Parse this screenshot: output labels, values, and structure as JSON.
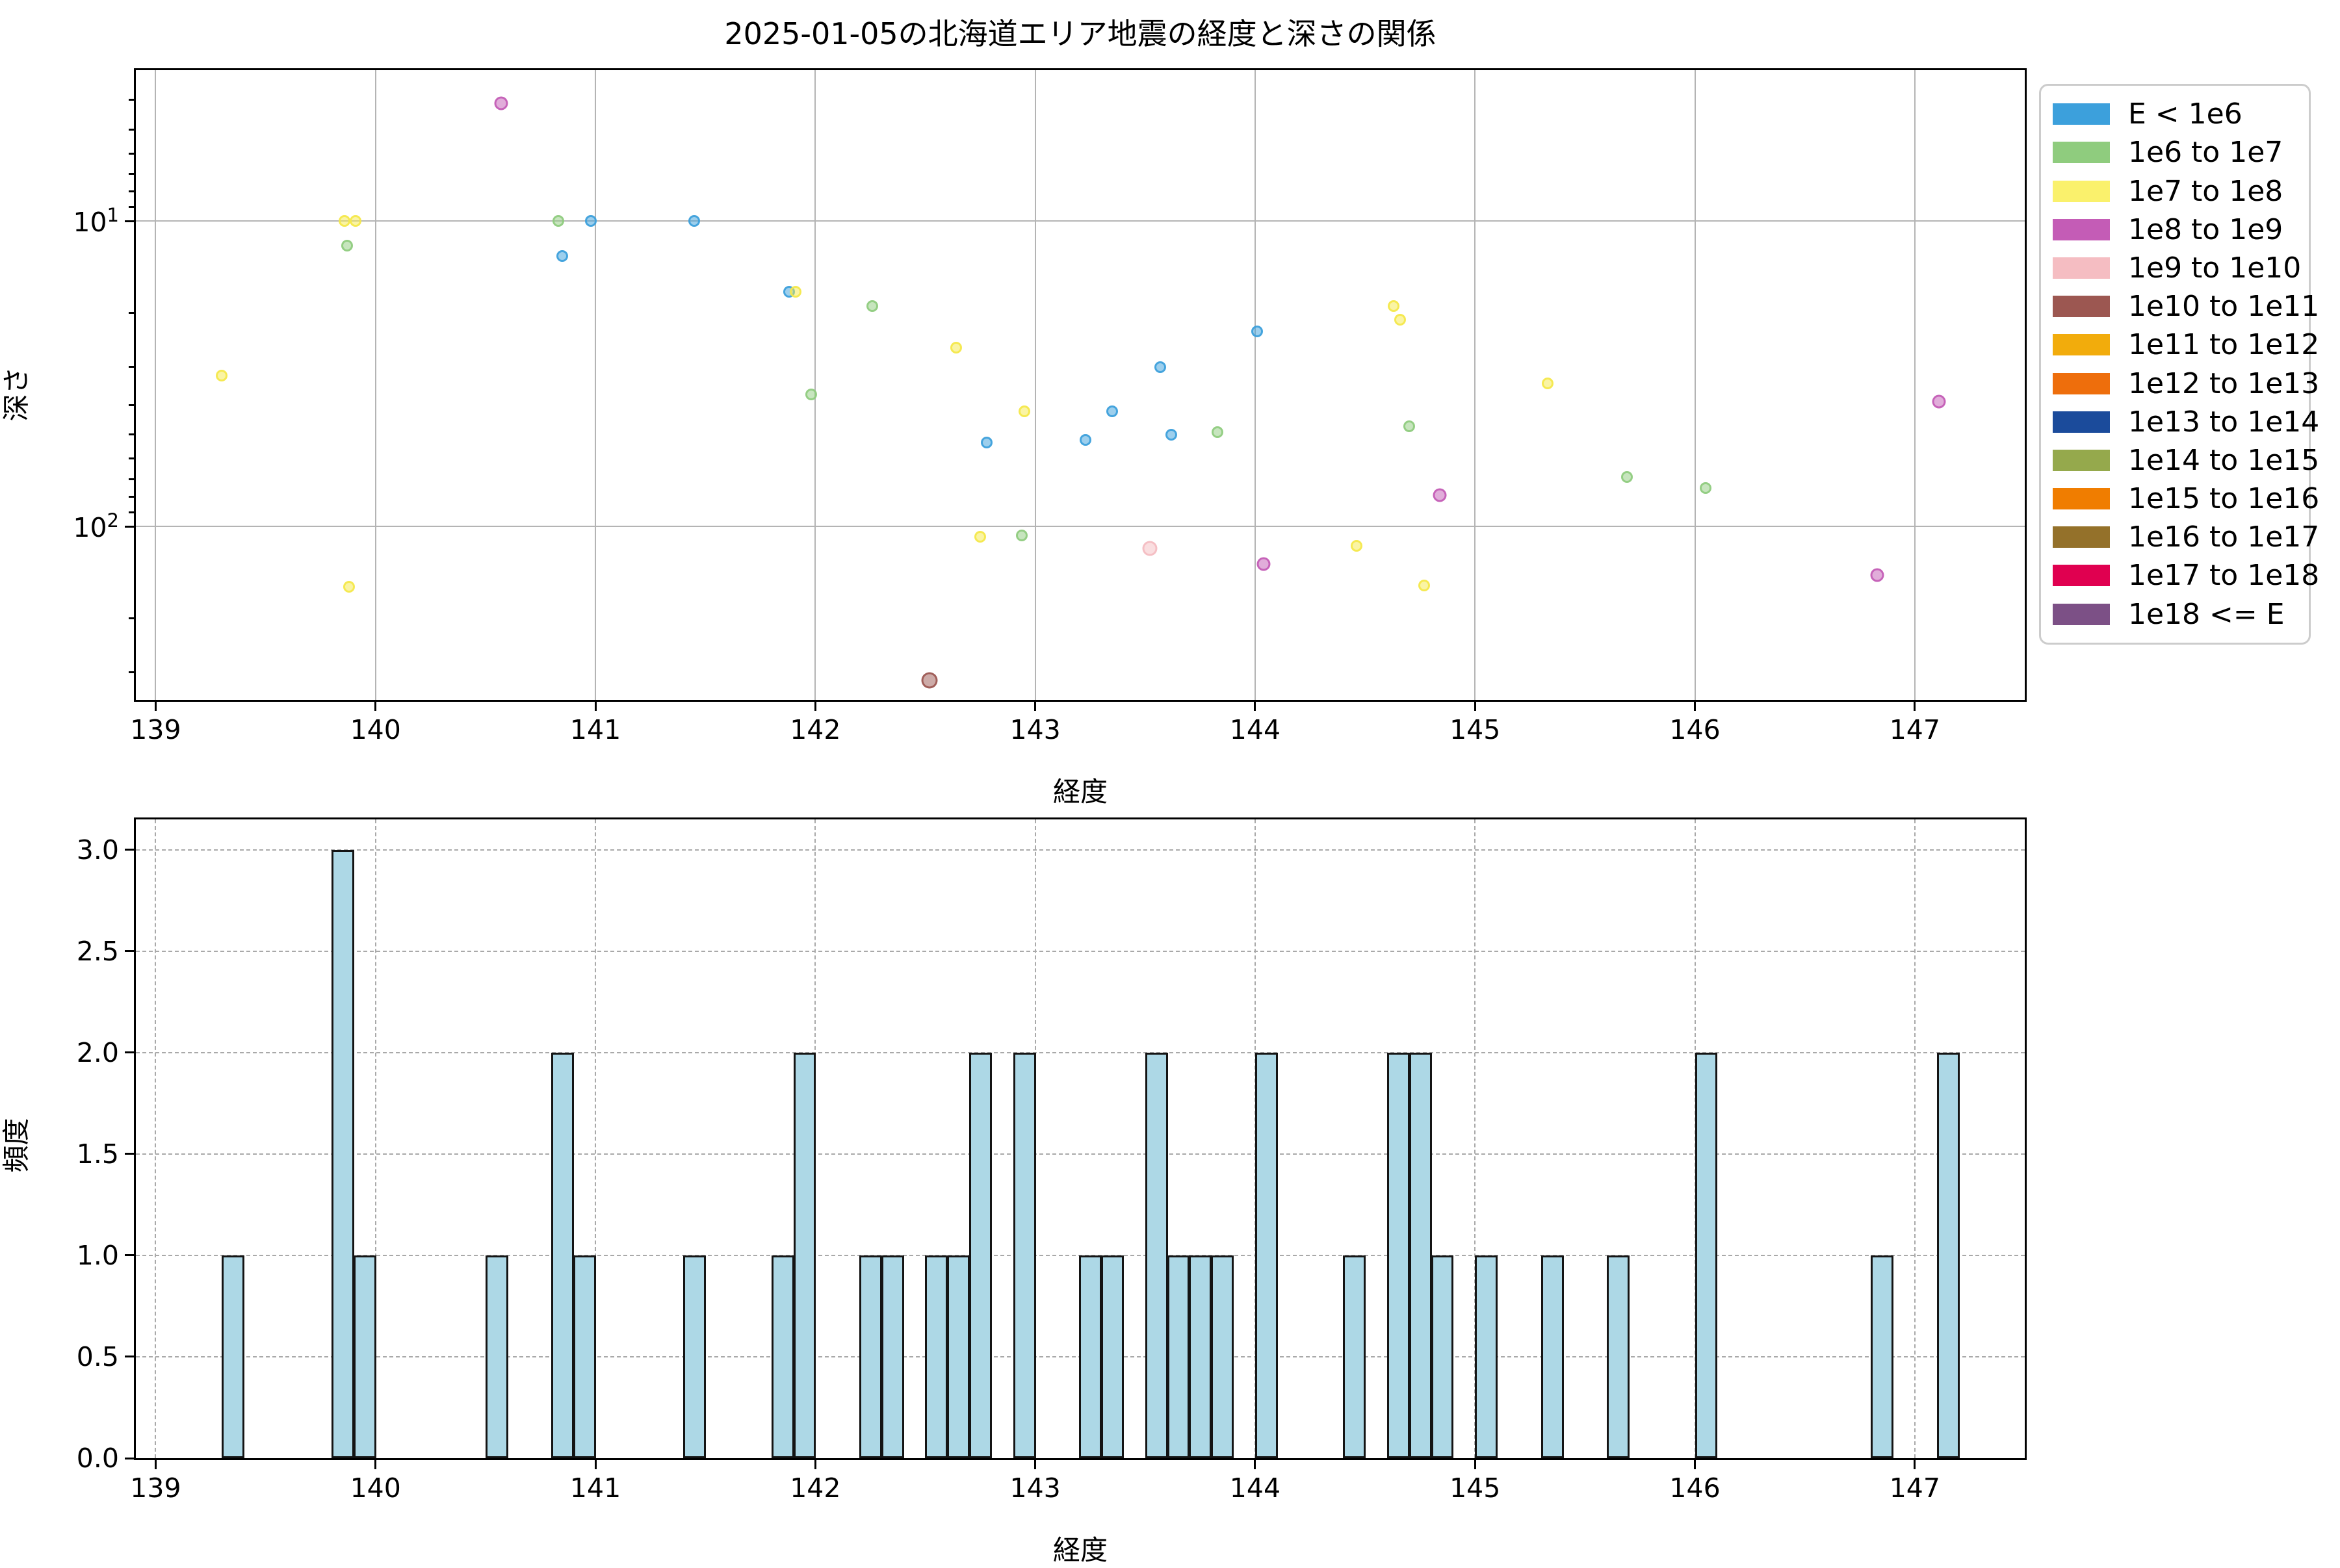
{
  "title": "2025-01-05の北海道エリア地震の経度と深さの関係",
  "scatter": {
    "xlabel": "経度",
    "ylabel": "深さ",
    "ytick_base": "10",
    "ytick_exponents": [
      1,
      2
    ]
  },
  "histogram": {
    "xlabel": "経度",
    "ylabel": "頻度",
    "ytick_labels": [
      "0.0",
      "0.5",
      "1.0",
      "1.5",
      "2.0",
      "2.5",
      "3.0"
    ]
  },
  "legend": {
    "items": [
      {
        "label": "E < 1e6",
        "color": "#3CA0DC"
      },
      {
        "label": "1e6 to 1e7",
        "color": "#8FCC7E"
      },
      {
        "label": "1e7 to 1e8",
        "color": "#FAF16C"
      },
      {
        "label": "1e8 to 1e9",
        "color": "#C45CB6"
      },
      {
        "label": "1e9 to 1e10",
        "color": "#F5BDC2"
      },
      {
        "label": "1e10 to 1e11",
        "color": "#9C5751"
      },
      {
        "label": "1e11 to 1e12",
        "color": "#F2AC0C"
      },
      {
        "label": "1e12 to 1e13",
        "color": "#EE6E0C"
      },
      {
        "label": "1e13 to 1e14",
        "color": "#1B4B9B"
      },
      {
        "label": "1e14 to 1e15",
        "color": "#95A94C"
      },
      {
        "label": "1e15 to 1e16",
        "color": "#F07D00"
      },
      {
        "label": "1e16 to 1e17",
        "color": "#94712A"
      },
      {
        "label": "1e17 to 1e18",
        "color": "#E00050"
      },
      {
        "label": "1e18 <= E",
        "color": "#7C5086"
      }
    ]
  },
  "chart_data": [
    {
      "type": "scatter",
      "title": "2025-01-05の北海道エリア地震の経度と深さの関係",
      "xlabel": "経度",
      "ylabel": "深さ",
      "xlim": [
        138.91,
        147.5
      ],
      "ylim_log_inverted": [
        370,
        3.2
      ],
      "xticks": [
        139,
        140,
        141,
        142,
        143,
        144,
        145,
        146,
        147
      ],
      "yticks_major": [
        10,
        100
      ],
      "yticks_minor": [
        4,
        5,
        6,
        7,
        8,
        9,
        20,
        30,
        40,
        50,
        60,
        70,
        80,
        90,
        200,
        300
      ],
      "grid": "solid major",
      "legend_position": "outside upper right",
      "series": [
        {
          "name": "E < 1e6",
          "color": "#3CA0DC",
          "marker_px": 18,
          "points": [
            [
              140.85,
              13
            ],
            [
              140.98,
              10
            ],
            [
              141.45,
              10
            ],
            [
              141.88,
              17
            ],
            [
              142.78,
              53
            ],
            [
              143.23,
              52
            ],
            [
              143.35,
              42
            ],
            [
              143.57,
              30
            ],
            [
              143.62,
              50
            ],
            [
              144.01,
              23
            ]
          ]
        },
        {
          "name": "1e6 to 1e7",
          "color": "#8FCC7E",
          "marker_px": 18,
          "points": [
            [
              139.87,
              12
            ],
            [
              140.83,
              10
            ],
            [
              141.98,
              37
            ],
            [
              142.26,
              19
            ],
            [
              142.94,
              107
            ],
            [
              143.83,
              49
            ],
            [
              144.7,
              47
            ],
            [
              145.69,
              69
            ],
            [
              146.05,
              75
            ]
          ]
        },
        {
          "name": "1e7 to 1e8",
          "color": "#F5E94A",
          "marker_px": 18,
          "points": [
            [
              139.3,
              32
            ],
            [
              139.86,
              10
            ],
            [
              139.88,
              158
            ],
            [
              139.91,
              10
            ],
            [
              141.91,
              17
            ],
            [
              142.64,
              26
            ],
            [
              142.75,
              108
            ],
            [
              142.95,
              42
            ],
            [
              144.46,
              116
            ],
            [
              144.63,
              19
            ],
            [
              144.66,
              21
            ],
            [
              144.77,
              156
            ],
            [
              145.33,
              34
            ]
          ]
        },
        {
          "name": "1e8 to 1e9",
          "color": "#C45CB6",
          "marker_px": 21,
          "points": [
            [
              140.57,
              4.1
            ],
            [
              144.04,
              133
            ],
            [
              144.84,
              79
            ],
            [
              146.83,
              144
            ],
            [
              147.11,
              39
            ]
          ]
        },
        {
          "name": "1e9 to 1e10",
          "color": "#F5BDC2",
          "marker_px": 23,
          "points": [
            [
              143.52,
              118
            ]
          ]
        },
        {
          "name": "1e10 to 1e11",
          "color": "#9C5751",
          "marker_px": 25,
          "points": [
            [
              142.52,
              319
            ]
          ]
        }
      ]
    },
    {
      "type": "bar",
      "xlabel": "経度",
      "ylabel": "頻度",
      "xlim": [
        138.91,
        147.5
      ],
      "ylim": [
        0,
        3.15
      ],
      "xticks": [
        139,
        140,
        141,
        142,
        143,
        144,
        145,
        146,
        147
      ],
      "yticks": [
        0,
        0.5,
        1,
        1.5,
        2,
        2.5,
        3
      ],
      "grid": "dashed both",
      "bar_fill": "#ADD8E6",
      "bar_edge": "#141414",
      "bin_width": 0.1,
      "bins": [
        {
          "x": 139.3,
          "n": 1
        },
        {
          "x": 139.8,
          "n": 3
        },
        {
          "x": 139.9,
          "n": 1
        },
        {
          "x": 140.5,
          "n": 1
        },
        {
          "x": 140.8,
          "n": 2
        },
        {
          "x": 140.9,
          "n": 1
        },
        {
          "x": 141.4,
          "n": 1
        },
        {
          "x": 141.8,
          "n": 1
        },
        {
          "x": 141.9,
          "n": 2
        },
        {
          "x": 142.2,
          "n": 1
        },
        {
          "x": 142.3,
          "n": 1
        },
        {
          "x": 142.5,
          "n": 1
        },
        {
          "x": 142.6,
          "n": 1
        },
        {
          "x": 142.7,
          "n": 2
        },
        {
          "x": 142.9,
          "n": 2
        },
        {
          "x": 143.2,
          "n": 1
        },
        {
          "x": 143.3,
          "n": 1
        },
        {
          "x": 143.5,
          "n": 2
        },
        {
          "x": 143.6,
          "n": 1
        },
        {
          "x": 143.7,
          "n": 1
        },
        {
          "x": 143.8,
          "n": 1
        },
        {
          "x": 144.0,
          "n": 2
        },
        {
          "x": 144.4,
          "n": 1
        },
        {
          "x": 144.6,
          "n": 2
        },
        {
          "x": 144.7,
          "n": 2
        },
        {
          "x": 144.8,
          "n": 1
        },
        {
          "x": 145.0,
          "n": 1
        },
        {
          "x": 145.3,
          "n": 1
        },
        {
          "x": 145.6,
          "n": 1
        },
        {
          "x": 146.0,
          "n": 2
        },
        {
          "x": 146.8,
          "n": 1
        },
        {
          "x": 147.1,
          "n": 2
        }
      ]
    }
  ]
}
